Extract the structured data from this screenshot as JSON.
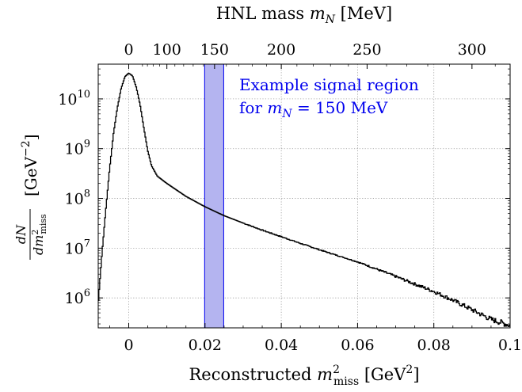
{
  "chart_data": {
    "type": "line",
    "xlabel": {
      "prefix": "Reconstructed ",
      "var": "m",
      "sup": "2",
      "sub": "miss",
      "unit_pre": " [GeV",
      "unit_sup": "2",
      "unit_post": "]"
    },
    "x2label": {
      "prefix": "HNL mass ",
      "var": "m",
      "sub": "N",
      "unit": " [MeV]"
    },
    "ylabel": {
      "num": "dN",
      "den": "dm",
      "den_sup": "2",
      "den_sub": "miss",
      "unit_pre": "[GeV",
      "unit_sup": "−2",
      "unit_post": "]"
    },
    "xlim": [
      -0.008,
      0.1
    ],
    "ylim": [
      250000,
      50000000000
    ],
    "yscale": "log",
    "grid": true,
    "xticks": [
      0,
      0.02,
      0.04,
      0.06,
      0.08,
      0.1
    ],
    "xtick_labels": [
      "0",
      "0.02",
      "0.04",
      "0.06",
      "0.08",
      "0.1"
    ],
    "yticks": [
      1000000,
      10000000,
      100000000,
      1000000000,
      10000000000
    ],
    "ytick_exponents": [
      "6",
      "7",
      "8",
      "9",
      "10"
    ],
    "ytick_base": "10",
    "top_ticks_mev": [
      0,
      100,
      150,
      200,
      250,
      300
    ],
    "top_tick_labels": [
      "0",
      "100",
      "150",
      "200",
      "250",
      "300"
    ],
    "signal_region": {
      "x": [
        0.0199,
        0.0249
      ],
      "color": "#b4b4f0",
      "edge": "#0000ee"
    },
    "annotation": {
      "line1": "Example signal region",
      "line2_prefix": "for ",
      "line2_var": "m",
      "line2_sub": "N",
      "line2_suffix": " = 150 MeV"
    },
    "series": [
      {
        "color": "#000000",
        "x": [
          -0.0085,
          -0.007,
          -0.006,
          -0.005,
          -0.004,
          -0.003,
          -0.002,
          -0.001,
          0.0,
          0.001,
          0.002,
          0.003,
          0.004,
          0.005,
          0.006,
          0.0075,
          0.01,
          0.015,
          0.02,
          0.025,
          0.03,
          0.035,
          0.04,
          0.045,
          0.05,
          0.055,
          0.06,
          0.065,
          0.07,
          0.075,
          0.08,
          0.085,
          0.09,
          0.095,
          0.1
        ],
        "y": [
          250000,
          8000000,
          60000000,
          400000000,
          2000000000,
          6500000000,
          16000000000,
          28000000000,
          33000000000,
          29000000000,
          17000000000,
          7500000000,
          2500000000,
          900000000,
          450000000,
          280000000,
          200000000,
          110000000,
          68000000,
          45000000,
          32000000,
          23000000,
          17000000,
          12500000,
          9300000,
          7000000,
          5300000,
          3800000,
          2700000,
          1900000,
          1350000,
          900000,
          580000,
          370000,
          280000
        ]
      }
    ]
  }
}
